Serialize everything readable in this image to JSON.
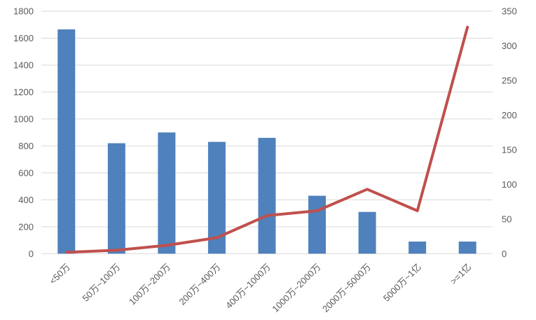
{
  "chart_data": {
    "type": "combo-bar-line",
    "title": "",
    "categories": [
      "<50万",
      "50万~100万",
      "100万~200万",
      "200万~400万",
      "400万~1000万",
      "1000万~2000万",
      "2000万~5000万",
      "5000万~1亿",
      ">=1亿"
    ],
    "series": [
      {
        "name": "bars",
        "type": "bar",
        "axis": "left",
        "values": [
          1665,
          820,
          900,
          830,
          860,
          430,
          310,
          90,
          90
        ]
      },
      {
        "name": "line",
        "type": "line",
        "axis": "right",
        "values": [
          2,
          5,
          12,
          23,
          55,
          62,
          93,
          62,
          327
        ]
      }
    ],
    "left_axis": {
      "min": 0,
      "max": 1800,
      "step": 200,
      "tick_labels": [
        "0",
        "200",
        "400",
        "600",
        "800",
        "1000",
        "1200",
        "1400",
        "1600",
        "1800"
      ]
    },
    "right_axis": {
      "min": 0,
      "max": 350,
      "step": 50,
      "tick_labels": [
        "0",
        "50",
        "100",
        "150",
        "200",
        "250",
        "300",
        "350"
      ]
    },
    "grid": true,
    "legend": false,
    "colors": {
      "bar": "#4F81BD",
      "line": "#C0504D",
      "grid": "#D9D9D9",
      "axis_line": "#D9D9D9",
      "axis_text": "#595959",
      "background": "#FFFFFF"
    }
  }
}
